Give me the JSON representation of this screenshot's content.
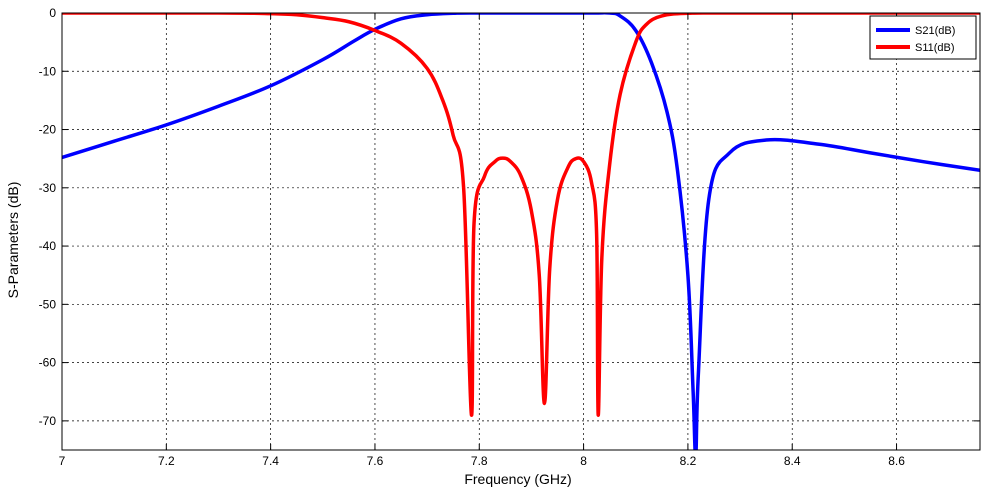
{
  "chart_data": {
    "type": "line",
    "xlabel": "Frequency (GHz)",
    "ylabel": "S-Parameters (dB)",
    "xlim": [
      7.0,
      8.76
    ],
    "ylim": [
      -75,
      0
    ],
    "x_ticks": [
      7,
      7.2,
      7.4,
      7.6,
      7.8,
      8,
      8.2,
      8.4,
      8.6
    ],
    "x_tick_labels": [
      "7",
      "7.2",
      "7.4",
      "7.6",
      "7.8",
      "8",
      "8.2",
      "8.4",
      "8.6"
    ],
    "y_ticks": [
      0,
      -10,
      -20,
      -30,
      -40,
      -50,
      -60,
      -70
    ],
    "y_tick_labels": [
      "0",
      "-10",
      "-20",
      "-30",
      "-40",
      "-50",
      "-60",
      "-70"
    ],
    "grid": true,
    "legend_position": "top-right",
    "series": [
      {
        "name": "S21(dB)",
        "color": "#0000ff",
        "x": [
          7.0,
          7.1,
          7.2,
          7.3,
          7.4,
          7.5,
          7.56,
          7.6,
          7.65,
          7.7,
          7.75,
          7.8,
          8.0,
          8.05,
          8.07,
          8.1,
          8.13,
          8.16,
          8.18,
          8.2,
          8.21,
          8.215,
          8.22,
          8.24,
          8.28,
          8.35,
          8.45,
          8.55,
          8.65,
          8.76
        ],
        "y": [
          -24.8,
          -22.0,
          -19.2,
          -16.0,
          -12.5,
          -8.0,
          -4.8,
          -2.8,
          -1.0,
          -0.3,
          -0.05,
          0.0,
          0.0,
          0.0,
          -0.5,
          -3.0,
          -8.5,
          -17.0,
          -27.0,
          -45.0,
          -65.0,
          -76.0,
          -62.0,
          -32.0,
          -24.0,
          -21.8,
          -22.5,
          -24.0,
          -25.5,
          -27.0
        ]
      },
      {
        "name": "S11(dB)",
        "color": "#ff0000",
        "x": [
          7.0,
          7.3,
          7.4,
          7.45,
          7.5,
          7.55,
          7.6,
          7.65,
          7.7,
          7.73,
          7.75,
          7.77,
          7.785,
          7.79,
          7.81,
          7.83,
          7.845,
          7.86,
          7.88,
          7.9,
          7.915,
          7.925,
          7.935,
          7.95,
          7.97,
          7.985,
          8.0,
          8.015,
          8.025,
          8.028,
          8.035,
          8.05,
          8.07,
          8.1,
          8.12,
          8.15,
          8.2,
          8.3,
          8.76
        ],
        "y": [
          0.0,
          0.0,
          -0.1,
          -0.3,
          -0.8,
          -1.5,
          -3.0,
          -5.2,
          -9.5,
          -15.0,
          -21.0,
          -30.0,
          -69.0,
          -36.0,
          -28.0,
          -25.5,
          -24.9,
          -25.5,
          -28.0,
          -34.0,
          -45.0,
          -67.0,
          -44.0,
          -32.0,
          -26.5,
          -25.0,
          -25.5,
          -29.0,
          -38.0,
          -69.0,
          -42.0,
          -26.0,
          -14.0,
          -5.0,
          -2.0,
          -0.5,
          -0.05,
          0.0,
          0.0
        ]
      }
    ]
  }
}
